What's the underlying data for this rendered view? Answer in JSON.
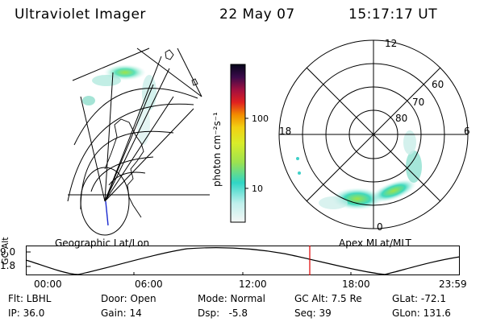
{
  "header": {
    "title": "Ultraviolet Imager",
    "date": "22 May 07",
    "time": "15:17:17 UT"
  },
  "colorbar": {
    "label": "photon cm⁻²s⁻¹",
    "ticks": [
      "100",
      "10"
    ]
  },
  "panels": {
    "left_caption": "Geographic Lat/Lon",
    "right_caption": "Apex MLat/MLT"
  },
  "polar": {
    "mlt_labels": [
      "12",
      "18",
      "6",
      "0"
    ],
    "lat_labels": [
      "60",
      "70",
      "80"
    ]
  },
  "altitude_plot": {
    "ylabel": "GC Alt",
    "y_ticks": [
      "9.0",
      "1.8"
    ],
    "x_ticks": [
      "00:00",
      "06:00",
      "12:00",
      "18:00",
      "23:59"
    ],
    "current_time_color": "#e00000"
  },
  "status": {
    "filter": "Flt: LBHL",
    "ip": "IP: 36.0",
    "door": "Door: Open",
    "gain": "Gain: 14",
    "mode": "Mode: Normal",
    "dsp": "Dsp:   -5.8",
    "gc_alt": "GC Alt: 7.5 Re",
    "seq": "Seq: 39",
    "glat": "GLat: -72.1",
    "glon": "GLon: 131.6"
  }
}
